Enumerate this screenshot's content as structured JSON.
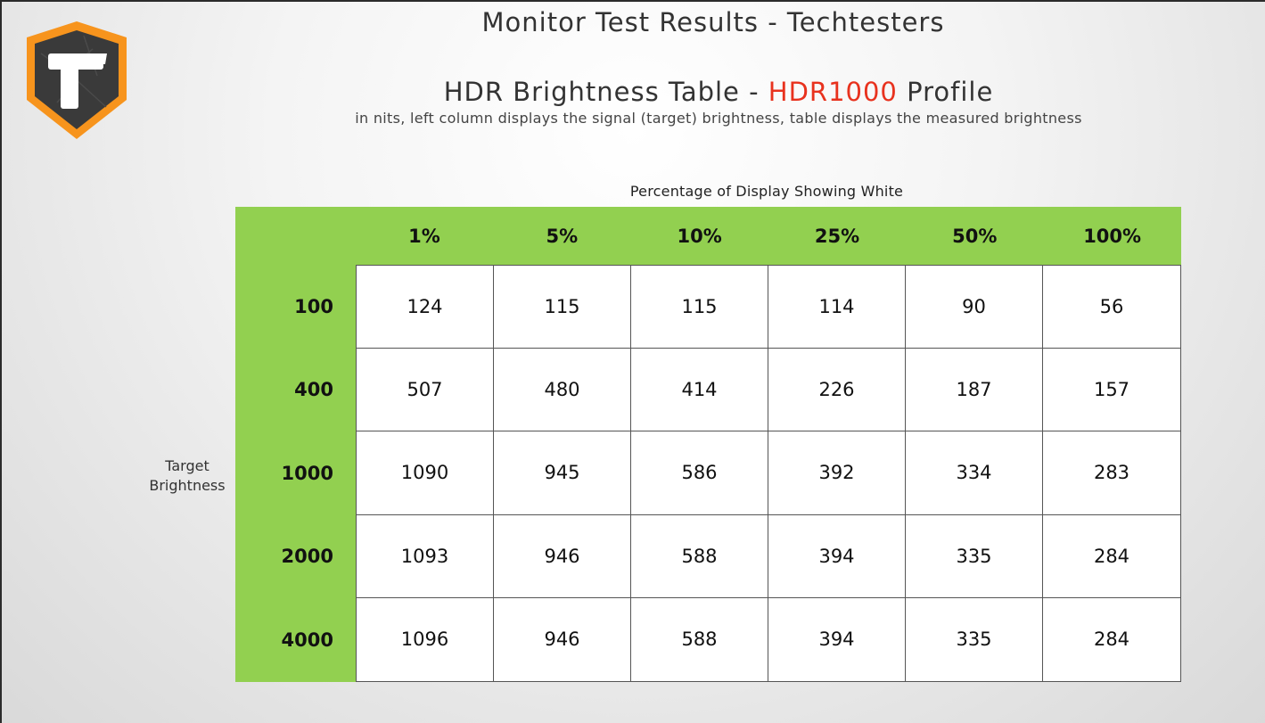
{
  "header": {
    "title": "Monitor Test Results - Techtesters",
    "subtitle_prefix": "HDR Brightness Table - ",
    "subtitle_accent": "HDR1000",
    "subtitle_suffix": " Profile",
    "description": "in nits, left column displays the signal (target) brightness, table displays the measured brightness"
  },
  "colors": {
    "green": "#92d050",
    "accent_red": "#e8321e",
    "logo_orange": "#f7941d",
    "logo_dark": "#3a3a3a"
  },
  "logo": {
    "icon": "techtesters-logo-icon"
  },
  "chart_data": {
    "type": "table",
    "column_axis_label": "Percentage of Display Showing White",
    "row_axis_label_line1": "Target",
    "row_axis_label_line2": "Brightness",
    "columns": [
      "1%",
      "5%",
      "10%",
      "25%",
      "50%",
      "100%"
    ],
    "rows": [
      {
        "target": "100",
        "values": [
          "124",
          "115",
          "115",
          "114",
          "90",
          "56"
        ]
      },
      {
        "target": "400",
        "values": [
          "507",
          "480",
          "414",
          "226",
          "187",
          "157"
        ]
      },
      {
        "target": "1000",
        "values": [
          "1090",
          "945",
          "586",
          "392",
          "334",
          "283"
        ]
      },
      {
        "target": "2000",
        "values": [
          "1093",
          "946",
          "588",
          "394",
          "335",
          "284"
        ]
      },
      {
        "target": "4000",
        "values": [
          "1096",
          "946",
          "588",
          "394",
          "335",
          "284"
        ]
      }
    ]
  }
}
